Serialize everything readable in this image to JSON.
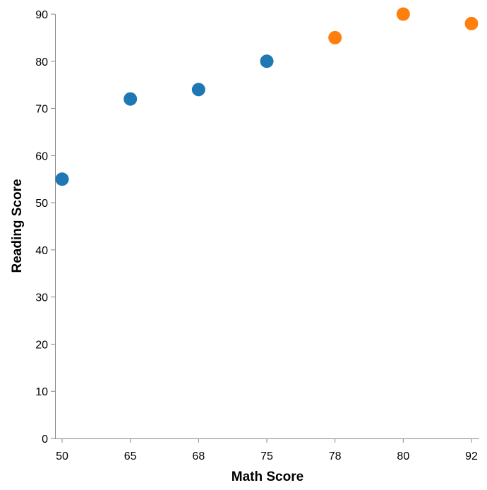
{
  "chart_data": {
    "type": "scatter",
    "xlabel": "Math Score",
    "ylabel": "Reading Score",
    "x_axis_type": "ordinal",
    "x_categories": [
      "50",
      "65",
      "68",
      "75",
      "78",
      "80",
      "92"
    ],
    "ylim": [
      0,
      90
    ],
    "y_ticks": [
      0,
      10,
      20,
      30,
      40,
      50,
      60,
      70,
      80,
      90
    ],
    "grid": false,
    "legend": "none",
    "points": [
      {
        "x": "50",
        "y": 55,
        "color": "#1f77b4"
      },
      {
        "x": "65",
        "y": 72,
        "color": "#1f77b4"
      },
      {
        "x": "68",
        "y": 74,
        "color": "#1f77b4"
      },
      {
        "x": "75",
        "y": 80,
        "color": "#1f77b4"
      },
      {
        "x": "78",
        "y": 85,
        "color": "#ff7f0e"
      },
      {
        "x": "80",
        "y": 90,
        "color": "#ff7f0e"
      },
      {
        "x": "92",
        "y": 88,
        "color": "#ff7f0e"
      }
    ],
    "colors": {
      "axis": "#888888",
      "series_a": "#1f77b4",
      "series_b": "#ff7f0e"
    }
  }
}
